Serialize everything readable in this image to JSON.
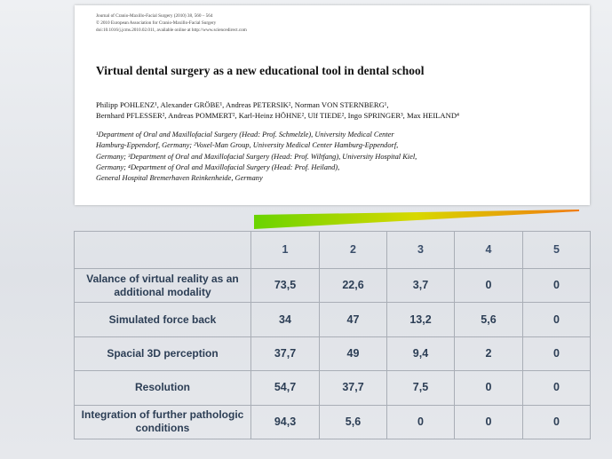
{
  "paper": {
    "journal_line": "Journal of Cranio-Maxillo-Facial Surgery (2010) 38, 560 – 564",
    "copyright_line": "© 2010 European Association for Cranio-Maxillo-Facial Surgery",
    "doi_line": "doi:10.1016/j.jcms.2010.02.011, available online at http://www.sciencedirect.com",
    "title": "Virtual dental surgery as a new educational tool in dental school",
    "authors_line1": "Philipp POHLENZ¹, Alexander GRÖBE¹, Andreas PETERSIK², Norman VON STERNBERG¹,",
    "authors_line2": "Bernhard PFLESSER², Andreas POMMERT², Karl-Heinz HÖHNE², Ulf TIEDE², Ingo SPRINGER³, Max HEILAND⁴",
    "affil_line1": "¹Department of Oral and Maxillofacial Surgery (Head: Prof. Schmelzle), University Medical Center",
    "affil_line2": "Hamburg-Eppendorf, Germany; ²Voxel-Man Group, University Medical Center Hamburg-Eppendorf,",
    "affil_line3": "Germany; ³Department of Oral and Maxillofacial Surgery (Head: Prof. Wiltfang), University Hospital Kiel,",
    "affil_line4": "Germany; ⁴Department of Oral and Maxillofacial Surgery (Head: Prof. Heiland),",
    "affil_line5": "General Hospital Bremerhaven Reinkenheide, Germany"
  },
  "colors": {
    "wedge_start": "#6ad400",
    "wedge_end": "#f07a10",
    "table_text": "#2c3e55"
  },
  "table": {
    "headers": [
      "",
      "1",
      "2",
      "3",
      "4",
      "5"
    ],
    "rows": [
      {
        "label": "Valance of virtual reality as an additional modality",
        "values": [
          "73,5",
          "22,6",
          "3,7",
          "0",
          "0"
        ]
      },
      {
        "label": "Simulated force back",
        "values": [
          "34",
          "47",
          "13,2",
          "5,6",
          "0"
        ]
      },
      {
        "label": "Spacial 3D perception",
        "values": [
          "37,7",
          "49",
          "9,4",
          "2",
          "0"
        ]
      },
      {
        "label": "Resolution",
        "values": [
          "54,7",
          "37,7",
          "7,5",
          "0",
          "0"
        ]
      },
      {
        "label": "Integration of further pathologic conditions",
        "values": [
          "94,3",
          "5,6",
          "0",
          "0",
          "0"
        ]
      }
    ]
  }
}
